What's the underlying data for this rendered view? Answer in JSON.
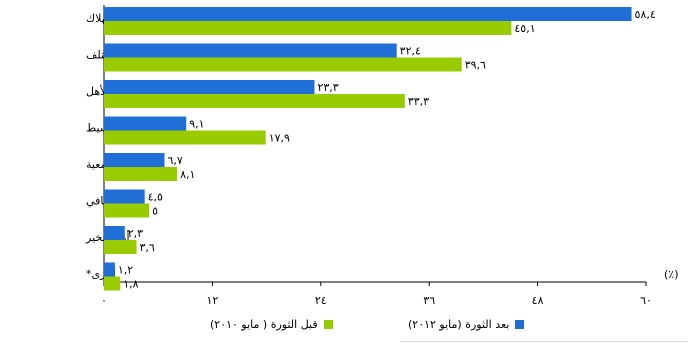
{
  "chart_data": {
    "type": "bar",
    "orientation": "horizontal",
    "categories": [
      "ترشيد استهلاك",
      "أستلف",
      "مساعدات من الأهل",
      "تقسيط",
      "أعمل جمعية",
      "عمل إضافي",
      "أهل الخير",
      "أخرى*"
    ],
    "series": [
      {
        "name": "بعد الثورة (مايو ٢٠١٢)",
        "color": "#1f6fd6",
        "values": [
          58.4,
          32.4,
          23.3,
          9.1,
          6.7,
          4.5,
          2.3,
          1.2
        ],
        "labels": [
          "٥٨,٤",
          "٣٢,٤",
          "٢٣,٣",
          "٩,١",
          "٦,٧",
          "٤,٥",
          "٢,٣",
          "١,٢"
        ]
      },
      {
        "name": "قبل الثورة ( مايو ٢٠١٠)",
        "color": "#99cc00",
        "values": [
          45.1,
          39.6,
          33.3,
          17.9,
          8.1,
          5,
          3.6,
          1.8
        ],
        "labels": [
          "٤٥,١",
          "٣٩,٦",
          "٣٣,٣",
          "١٧,٩",
          "٨,١",
          "٥",
          "٣,٦",
          "١,٨"
        ]
      }
    ],
    "xlim": [
      0,
      60
    ],
    "ticks": [
      0,
      12,
      24,
      36,
      48,
      60
    ],
    "tick_labels": [
      "٠",
      "١٢",
      "٢٤",
      "٣٦",
      "٤٨",
      "٦٠"
    ],
    "unit_label": "(٪)",
    "legend_position": "bottom",
    "grid": false
  }
}
